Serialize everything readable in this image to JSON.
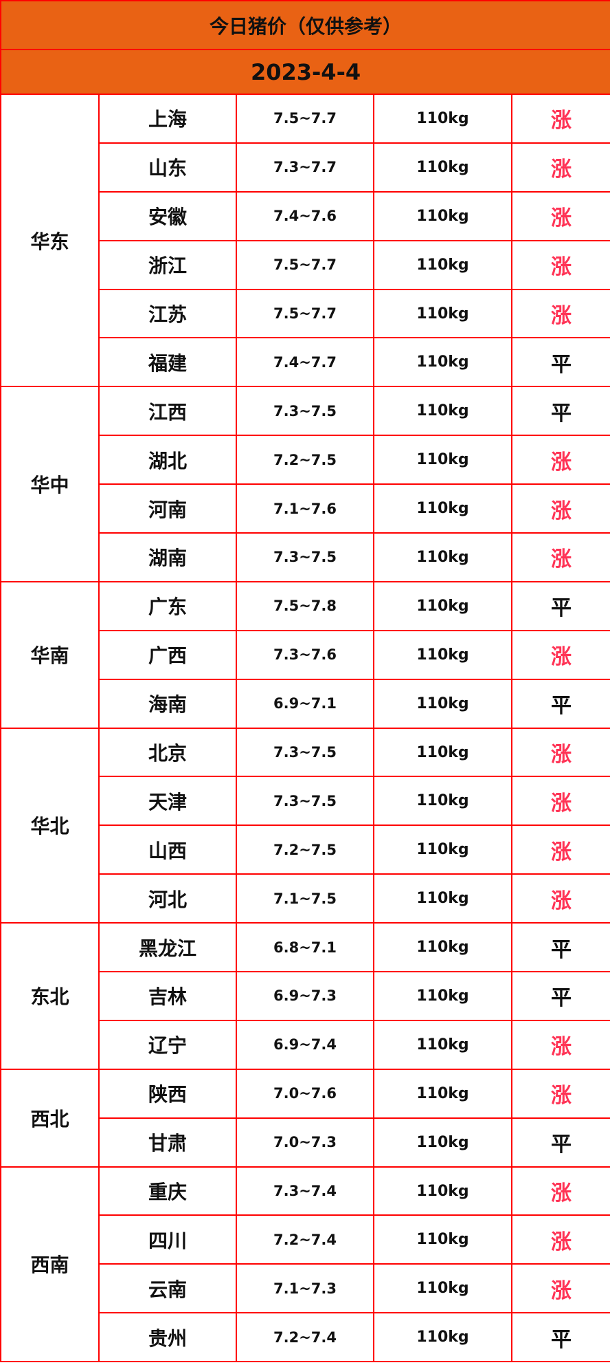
{
  "title": "今日猪价（仅供参考）",
  "date": "2023-4-4",
  "colors": {
    "header_bg": "#e96214",
    "border": "#ff0000",
    "up": "#ff3355",
    "flat": "#111111"
  },
  "regions": [
    {
      "name": "华东",
      "rows": [
        {
          "city": "上海",
          "price": "7.5~7.7",
          "weight": "110kg",
          "trend": "涨"
        },
        {
          "city": "山东",
          "price": "7.3~7.7",
          "weight": "110kg",
          "trend": "涨"
        },
        {
          "city": "安徽",
          "price": "7.4~7.6",
          "weight": "110kg",
          "trend": "涨"
        },
        {
          "city": "浙江",
          "price": "7.5~7.7",
          "weight": "110kg",
          "trend": "涨"
        },
        {
          "city": "江苏",
          "price": "7.5~7.7",
          "weight": "110kg",
          "trend": "涨"
        },
        {
          "city": "福建",
          "price": "7.4~7.7",
          "weight": "110kg",
          "trend": "平"
        }
      ]
    },
    {
      "name": "华中",
      "rows": [
        {
          "city": "江西",
          "price": "7.3~7.5",
          "weight": "110kg",
          "trend": "平"
        },
        {
          "city": "湖北",
          "price": "7.2~7.5",
          "weight": "110kg",
          "trend": "涨"
        },
        {
          "city": "河南",
          "price": "7.1~7.6",
          "weight": "110kg",
          "trend": "涨"
        },
        {
          "city": "湖南",
          "price": "7.3~7.5",
          "weight": "110kg",
          "trend": "涨"
        }
      ]
    },
    {
      "name": "华南",
      "rows": [
        {
          "city": "广东",
          "price": "7.5~7.8",
          "weight": "110kg",
          "trend": "平"
        },
        {
          "city": "广西",
          "price": "7.3~7.6",
          "weight": "110kg",
          "trend": "涨"
        },
        {
          "city": "海南",
          "price": "6.9~7.1",
          "weight": "110kg",
          "trend": "平"
        }
      ]
    },
    {
      "name": "华北",
      "rows": [
        {
          "city": "北京",
          "price": "7.3~7.5",
          "weight": "110kg",
          "trend": "涨"
        },
        {
          "city": "天津",
          "price": "7.3~7.5",
          "weight": "110kg",
          "trend": "涨"
        },
        {
          "city": "山西",
          "price": "7.2~7.5",
          "weight": "110kg",
          "trend": "涨"
        },
        {
          "city": "河北",
          "price": "7.1~7.5",
          "weight": "110kg",
          "trend": "涨"
        }
      ]
    },
    {
      "name": "东北",
      "rows": [
        {
          "city": "黑龙江",
          "price": "6.8~7.1",
          "weight": "110kg",
          "trend": "平"
        },
        {
          "city": "吉林",
          "price": "6.9~7.3",
          "weight": "110kg",
          "trend": "平"
        },
        {
          "city": "辽宁",
          "price": "6.9~7.4",
          "weight": "110kg",
          "trend": "涨"
        }
      ]
    },
    {
      "name": "西北",
      "rows": [
        {
          "city": "陕西",
          "price": "7.0~7.6",
          "weight": "110kg",
          "trend": "涨"
        },
        {
          "city": "甘肃",
          "price": "7.0~7.3",
          "weight": "110kg",
          "trend": "平"
        }
      ]
    },
    {
      "name": "西南",
      "rows": [
        {
          "city": "重庆",
          "price": "7.3~7.4",
          "weight": "110kg",
          "trend": "涨"
        },
        {
          "city": "四川",
          "price": "7.2~7.4",
          "weight": "110kg",
          "trend": "涨"
        },
        {
          "city": "云南",
          "price": "7.1~7.3",
          "weight": "110kg",
          "trend": "涨"
        },
        {
          "city": "贵州",
          "price": "7.2~7.4",
          "weight": "110kg",
          "trend": "平"
        }
      ]
    }
  ]
}
